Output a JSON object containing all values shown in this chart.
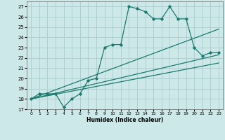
{
  "xlabel": "Humidex (Indice chaleur)",
  "ylabel": "",
  "xlim": [
    -0.5,
    23.5
  ],
  "ylim": [
    17,
    27.5
  ],
  "yticks": [
    17,
    18,
    19,
    20,
    21,
    22,
    23,
    24,
    25,
    26,
    27
  ],
  "xticks": [
    0,
    1,
    2,
    3,
    4,
    5,
    6,
    7,
    8,
    9,
    10,
    11,
    12,
    13,
    14,
    15,
    16,
    17,
    18,
    19,
    20,
    21,
    22,
    23
  ],
  "background_color": "#cce8e8",
  "grid_color": "#aacccc",
  "line_color": "#1a7a6e",
  "line1_x": [
    0,
    1,
    2,
    3,
    4,
    5,
    6,
    7,
    8,
    9,
    10,
    11,
    12,
    13,
    14,
    15,
    16,
    17,
    18,
    19,
    20,
    21,
    22,
    23
  ],
  "line1_y": [
    18.0,
    18.5,
    18.5,
    18.5,
    17.2,
    18.0,
    18.5,
    19.8,
    20.0,
    23.0,
    23.3,
    23.3,
    27.0,
    26.8,
    26.5,
    25.8,
    25.8,
    27.0,
    25.8,
    25.8,
    23.0,
    22.2,
    22.5,
    22.5
  ],
  "line2_x": [
    0,
    23
  ],
  "line2_y": [
    18.0,
    22.3
  ],
  "line3_x": [
    0,
    23
  ],
  "line3_y": [
    18.0,
    21.5
  ],
  "line4_x": [
    0,
    23
  ],
  "line4_y": [
    18.0,
    24.8
  ]
}
